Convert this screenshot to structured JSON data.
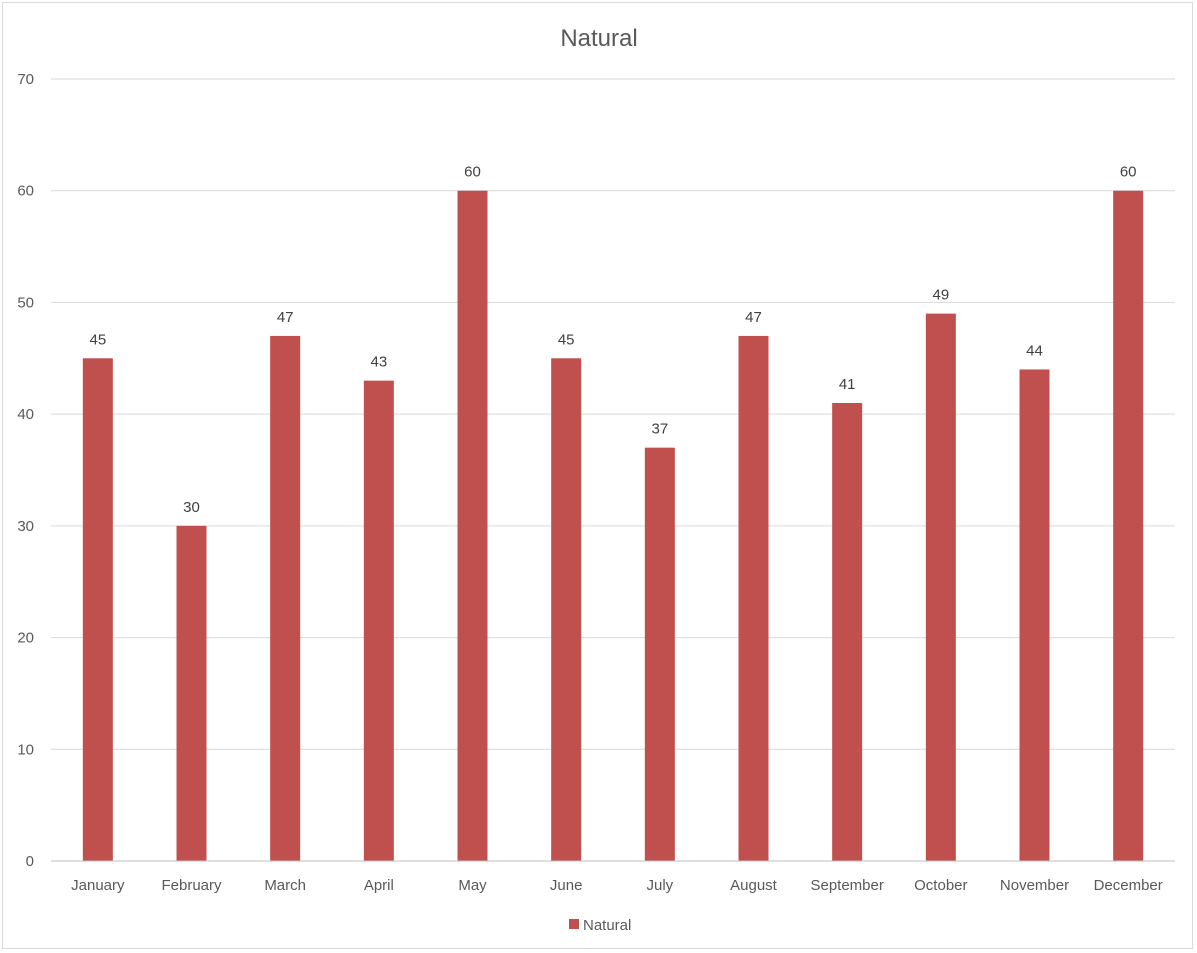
{
  "chart_data": {
    "type": "bar",
    "title": "Natural",
    "xlabel": "",
    "ylabel": "",
    "ylim": [
      0,
      70
    ],
    "yticks": [
      0,
      10,
      20,
      30,
      40,
      50,
      60,
      70
    ],
    "grid": true,
    "legend_position": "bottom",
    "categories": [
      "January",
      "February",
      "March",
      "April",
      "May",
      "June",
      "July",
      "August",
      "September",
      "October",
      "November",
      "December"
    ],
    "series": [
      {
        "name": "Natural",
        "color": "#c0504d",
        "values": [
          45,
          30,
          47,
          43,
          60,
          45,
          37,
          47,
          41,
          49,
          44,
          60
        ]
      }
    ]
  }
}
